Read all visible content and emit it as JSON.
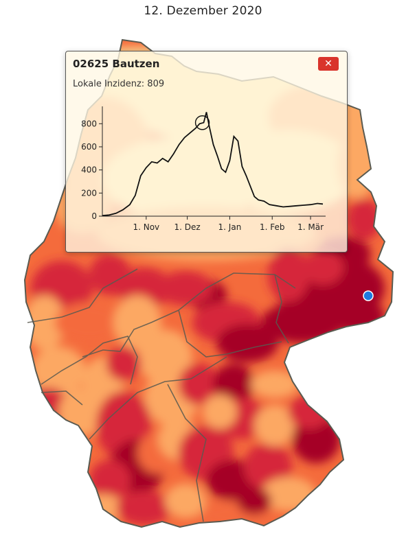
{
  "title": "12. Dezember 2020",
  "colors": {
    "low": "#fde49b",
    "mid_low": "#fca863",
    "mid": "#f46b3c",
    "high": "#d6263a",
    "very_high": "#a50026",
    "border": "#5a5a50",
    "marker": "#1f7ae0",
    "close_button": "#d9342b"
  },
  "map": {
    "selected_region": "02625 Bautzen"
  },
  "popup": {
    "title": "02625 Bautzen",
    "subtitle": "Lokale Inzidenz: 809",
    "close_icon": "close-icon"
  },
  "chart_data": {
    "type": "line",
    "x_ticks": [
      "1. Nov",
      "1. Dez",
      "1. Jan",
      "1. Feb",
      "1. Mär"
    ],
    "y_ticks": [
      0,
      200,
      400,
      600,
      800
    ],
    "ylim": [
      0,
      950
    ],
    "highlight": {
      "date": "12. Dezember 2020",
      "value": 809
    },
    "x": [
      "2020-09-30",
      "2020-10-05",
      "2020-10-10",
      "2020-10-15",
      "2020-10-20",
      "2020-10-24",
      "2020-10-28",
      "2020-11-01",
      "2020-11-05",
      "2020-11-09",
      "2020-11-13",
      "2020-11-17",
      "2020-11-21",
      "2020-11-25",
      "2020-11-29",
      "2020-12-03",
      "2020-12-07",
      "2020-12-10",
      "2020-12-13",
      "2020-12-15",
      "2020-12-17",
      "2020-12-20",
      "2020-12-23",
      "2020-12-26",
      "2020-12-29",
      "2021-01-01",
      "2021-01-04",
      "2021-01-07",
      "2021-01-10",
      "2021-01-13",
      "2021-01-16",
      "2021-01-19",
      "2021-01-22",
      "2021-01-26",
      "2021-01-30",
      "2021-02-04",
      "2021-02-09",
      "2021-02-14",
      "2021-02-19",
      "2021-02-24",
      "2021-03-01",
      "2021-03-06",
      "2021-03-10"
    ],
    "y": [
      5,
      10,
      25,
      55,
      100,
      180,
      350,
      420,
      470,
      460,
      500,
      470,
      540,
      620,
      680,
      720,
      760,
      800,
      809,
      900,
      780,
      620,
      520,
      410,
      380,
      480,
      690,
      650,
      430,
      350,
      260,
      170,
      140,
      130,
      100,
      90,
      80,
      85,
      90,
      95,
      100,
      110,
      105
    ]
  }
}
